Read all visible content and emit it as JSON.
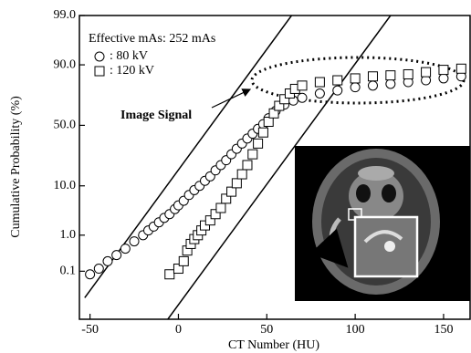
{
  "chart_data": {
    "type": "scatter",
    "yscale": "probability",
    "xlabel": "CT Number (HU)",
    "ylabel": "Cumulative Probability (%)",
    "legend_title": "Effective mAs: 252 mAs",
    "annotation": "Image Signal",
    "xlim": [
      -56,
      165
    ],
    "xticks": [
      -50,
      0,
      50,
      100,
      150
    ],
    "ylim": [
      0.002,
      99
    ],
    "yticks": [
      {
        "value": 99,
        "label": "99.0"
      },
      {
        "value": 90,
        "label": "90.0"
      },
      {
        "value": 50,
        "label": "50.0"
      },
      {
        "value": 10,
        "label": "10.0"
      },
      {
        "value": 1,
        "label": "1.0"
      },
      0.1
    ],
    "series": [
      {
        "name": ": 80 kV",
        "marker": "circle",
        "color": "#000000",
        "x": [
          -50,
          -45,
          -40,
          -35,
          -30,
          -25,
          -20,
          -17,
          -14,
          -11,
          -8,
          -5,
          -2,
          0,
          3,
          6,
          9,
          12,
          15,
          18,
          21,
          24,
          27,
          30,
          33,
          36,
          39,
          42,
          45,
          48,
          51,
          55,
          60,
          65,
          70,
          80,
          90,
          100,
          110,
          120,
          130,
          140,
          150,
          160
        ],
        "values": [
          0.08,
          0.12,
          0.2,
          0.3,
          0.45,
          0.7,
          1.0,
          1.3,
          1.6,
          2.0,
          2.5,
          3.0,
          3.8,
          4.5,
          5.5,
          7,
          8.5,
          10,
          12,
          14,
          17,
          20,
          23,
          27,
          31,
          35,
          39,
          43,
          47,
          51,
          56,
          62,
          67,
          70,
          72,
          75,
          77,
          79,
          80,
          81,
          82,
          83,
          84,
          85
        ]
      },
      {
        "name": ": 120 kV",
        "marker": "square",
        "color": "#000000",
        "x": [
          -5,
          0,
          3,
          5,
          7,
          9,
          11,
          13,
          15,
          18,
          21,
          24,
          27,
          30,
          33,
          36,
          39,
          42,
          45,
          48,
          51,
          54,
          57,
          60,
          63,
          66,
          70,
          80,
          90,
          100,
          110,
          120,
          130,
          140,
          150,
          160
        ],
        "values": [
          0.08,
          0.12,
          0.2,
          0.4,
          0.6,
          0.8,
          1.0,
          1.3,
          1.7,
          2.2,
          3,
          4,
          6,
          8,
          11,
          15,
          20,
          27,
          35,
          44,
          53,
          60,
          66,
          71,
          75,
          78,
          80,
          82,
          83,
          84,
          85,
          85.5,
          86,
          87,
          88,
          88.5
        ]
      }
    ],
    "fit_lines": [
      {
        "x": [
          -53,
          64
        ],
        "values": [
          0.013,
          99
        ]
      },
      {
        "x": [
          -6,
          120
        ],
        "values": [
          0.002,
          99
        ]
      }
    ]
  }
}
